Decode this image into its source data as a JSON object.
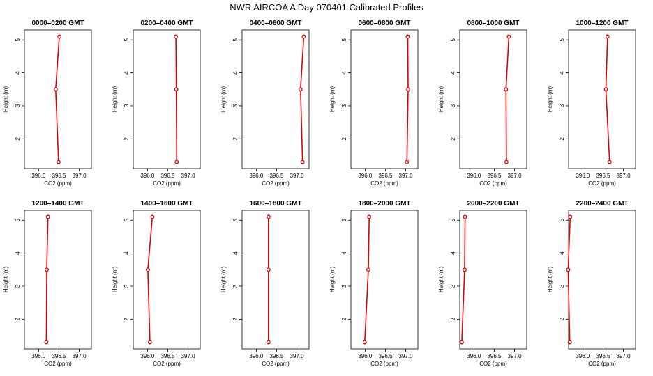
{
  "figure": {
    "title": "NWR AIRCOA A  Day 070401  Calibrated Profiles"
  },
  "chart_data": {
    "type": "line",
    "title": "NWR AIRCOA A  Day 070401  Calibrated Profiles",
    "line_color": "#e00000",
    "marker": "open-circle",
    "shared": {
      "xlabel": "CO2 (ppm)",
      "ylabel": "Height (m)",
      "xlim": [
        395.65,
        387.3
      ],
      "xlim_note": "",
      "xticks": [
        396.0,
        396.5,
        397.0
      ],
      "xtick_labels": [
        "396.0",
        "396.5",
        "397.0"
      ],
      "ylim": [
        1.1,
        5.3
      ],
      "yticks": [
        2,
        3,
        4,
        5
      ],
      "ytick_labels": [
        "2",
        "3",
        "4",
        "5"
      ],
      "grid": false
    },
    "panels": [
      {
        "title": "0000–0200 GMT",
        "x": [
          396.49,
          396.42,
          396.51
        ],
        "y": [
          1.3,
          3.5,
          5.1
        ]
      },
      {
        "title": "0200–0400 GMT",
        "x": [
          396.72,
          396.71,
          396.7
        ],
        "y": [
          1.3,
          3.5,
          5.1
        ]
      },
      {
        "title": "0400–0600 GMT",
        "x": [
          397.14,
          397.09,
          397.17
        ],
        "y": [
          1.3,
          3.5,
          5.1
        ]
      },
      {
        "title": "0600–0800 GMT",
        "x": [
          397.03,
          397.06,
          397.05
        ],
        "y": [
          1.3,
          3.5,
          5.1
        ]
      },
      {
        "title": "0800–1000 GMT",
        "x": [
          396.8,
          396.79,
          396.86
        ],
        "y": [
          1.3,
          3.5,
          5.1
        ]
      },
      {
        "title": "1000–1200 GMT",
        "x": [
          396.66,
          396.57,
          396.61
        ],
        "y": [
          1.3,
          3.5,
          5.1
        ]
      },
      {
        "title": "1200–1400 GMT",
        "x": [
          396.19,
          396.2,
          396.23
        ],
        "y": [
          1.3,
          3.5,
          5.1
        ]
      },
      {
        "title": "1400–1600 GMT",
        "x": [
          396.06,
          396.01,
          396.12
        ],
        "y": [
          1.3,
          3.5,
          5.1
        ]
      },
      {
        "title": "1600–1800 GMT",
        "x": [
          396.3,
          396.3,
          396.3
        ],
        "y": [
          1.3,
          3.5,
          5.1
        ]
      },
      {
        "title": "1800–2000 GMT",
        "x": [
          395.99,
          396.08,
          396.1
        ],
        "y": [
          1.3,
          3.5,
          5.1
        ]
      },
      {
        "title": "2000–2200 GMT",
        "x": [
          395.7,
          395.77,
          395.78
        ],
        "y": [
          1.3,
          3.5,
          5.1
        ]
      },
      {
        "title": "2200–2400 GMT",
        "x": [
          395.68,
          395.64,
          395.69
        ],
        "y": [
          1.3,
          3.5,
          5.1
        ]
      }
    ]
  }
}
